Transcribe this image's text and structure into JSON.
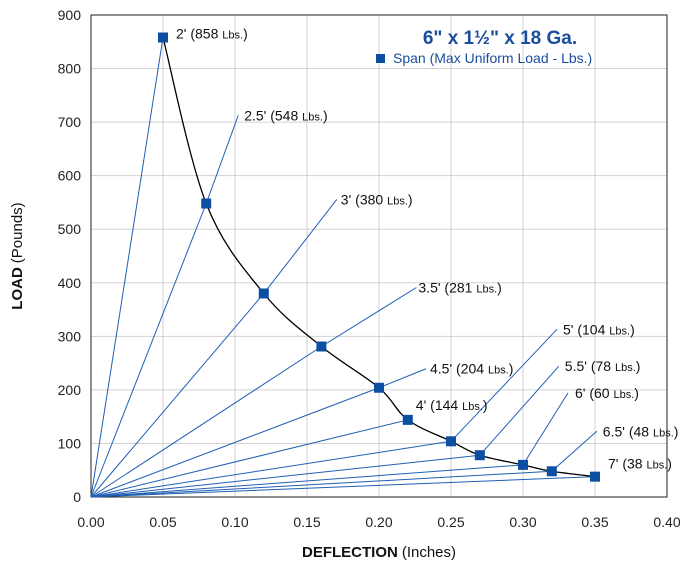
{
  "chart_data": {
    "type": "line",
    "title": "6\" x 1½\" x 18 Ga.",
    "xlabel": "DEFLECTION",
    "xlabel_unit": "(Inches)",
    "ylabel": "LOAD",
    "ylabel_unit": "(Pounds)",
    "xlim": [
      0,
      0.4
    ],
    "ylim": [
      0,
      900
    ],
    "x_ticks": [
      "0.00",
      "0.05",
      "0.10",
      "0.15",
      "0.20",
      "0.25",
      "0.30",
      "0.35",
      "0.40"
    ],
    "y_ticks": [
      "0",
      "100",
      "200",
      "300",
      "400",
      "500",
      "600",
      "700",
      "800",
      "900"
    ],
    "grid": true,
    "legend": {
      "position": "top-right",
      "entries": [
        "Span (Max Uniform Load - Lbs.)"
      ]
    },
    "colors": {
      "marker": "#0b4ea2",
      "lines": "#1f5fb4",
      "curve": "#000000"
    },
    "series": [
      {
        "name": "Span (Max Uniform Load - Lbs.)",
        "x": [
          0.05,
          0.08,
          0.12,
          0.16,
          0.2,
          0.22,
          0.25,
          0.27,
          0.3,
          0.32,
          0.35
        ],
        "y": [
          858,
          548,
          380,
          281,
          204,
          144,
          104,
          78,
          60,
          48,
          38
        ]
      }
    ],
    "points": [
      {
        "span": "2'",
        "load_text": "(858",
        "unit": "Lbs.)",
        "x": 0.05,
        "y": 858
      },
      {
        "span": "2.5'",
        "load_text": "(548",
        "unit": "Lbs.)",
        "x": 0.08,
        "y": 548
      },
      {
        "span": "3'",
        "load_text": "(380",
        "unit": "Lbs.)",
        "x": 0.12,
        "y": 380
      },
      {
        "span": "3.5'",
        "load_text": "(281",
        "unit": "Lbs.)",
        "x": 0.16,
        "y": 281
      },
      {
        "span": "4.5'",
        "load_text": "(204",
        "unit": "Lbs.)",
        "x": 0.2,
        "y": 204
      },
      {
        "span": "4'",
        "load_text": "(144",
        "unit": "Lbs.)",
        "x": 0.22,
        "y": 144
      },
      {
        "span": "5'",
        "load_text": "(104",
        "unit": "Lbs.)",
        "x": 0.25,
        "y": 104
      },
      {
        "span": "5.5'",
        "load_text": "(78",
        "unit": "Lbs.)",
        "x": 0.27,
        "y": 78
      },
      {
        "span": "6'",
        "load_text": "(60",
        "unit": "Lbs.)",
        "x": 0.3,
        "y": 60
      },
      {
        "span": "6.5'",
        "load_text": "(48",
        "unit": "Lbs.)",
        "x": 0.32,
        "y": 48
      },
      {
        "span": "7'",
        "load_text": "(38",
        "unit": "Lbs.)",
        "x": 0.35,
        "y": 38
      }
    ]
  }
}
